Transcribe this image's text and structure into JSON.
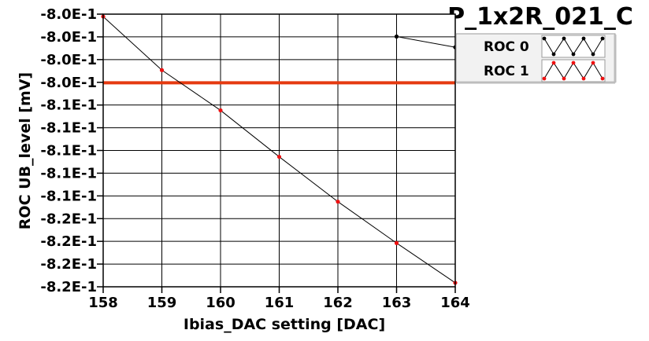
{
  "chart_data": {
    "type": "line",
    "title": "P_1x2R_021_C",
    "xlabel": "Ibias_DAC setting [DAC]",
    "ylabel": "ROC UB_level [mV]",
    "x_ticks": [
      "158",
      "159",
      "160",
      "161",
      "162",
      "163",
      "164"
    ],
    "y_ticks": [
      "-8.0E-1",
      "-8.0E-1",
      "-8.0E-1",
      "-8.0E-1",
      "-8.1E-1",
      "-8.1E-1",
      "-8.1E-1",
      "-8.1E-1",
      "-8.1E-1",
      "-8.2E-1",
      "-8.2E-1",
      "-8.2E-1",
      "-8.2E-1"
    ],
    "xlim": [
      158,
      164
    ],
    "ylim": [
      -0.8255,
      -0.7975
    ],
    "grid": true,
    "legend_position": "top-right",
    "series": [
      {
        "name": "ROC 0",
        "color": "#000000",
        "x": [
          163,
          164
        ],
        "y": [
          -0.7998,
          -0.8009
        ]
      },
      {
        "name": "ROC 1",
        "color": "#ee1111",
        "x": [
          158,
          159,
          160,
          161,
          162,
          163,
          164
        ],
        "y": [
          -0.79775,
          -0.80325,
          -0.80738,
          -0.81215,
          -0.81676,
          -0.82101,
          -0.82509
        ]
      }
    ],
    "reference_line": {
      "y": -0.80455,
      "color": "#e53a10"
    }
  }
}
